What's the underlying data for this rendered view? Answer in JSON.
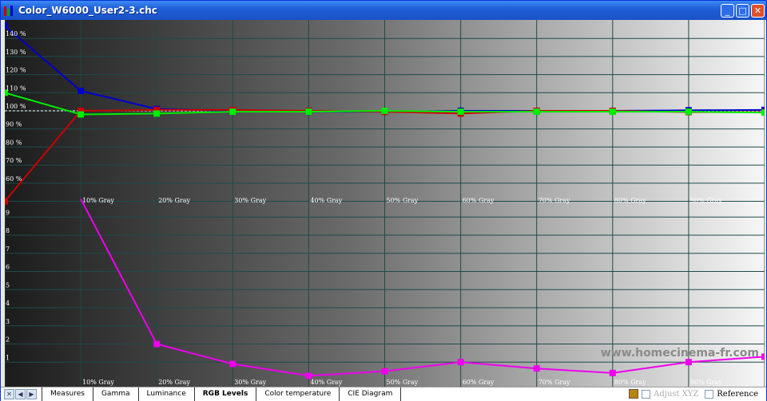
{
  "window": {
    "title": "Color_W6000_User2-3.chc",
    "controls": [
      "minimize",
      "maximize",
      "close"
    ]
  },
  "tabs": [
    {
      "label": "Measures"
    },
    {
      "label": "Gamma"
    },
    {
      "label": "Luminance"
    },
    {
      "label": "RGB Levels",
      "active": true
    },
    {
      "label": "Color temperature"
    },
    {
      "label": "CIE Diagram"
    }
  ],
  "status": {
    "adjust_xyz": "Adjust XYZ",
    "reference": "Reference"
  },
  "watermark": "www.homecinema-fr.com",
  "chart_data": [
    {
      "type": "line",
      "x": [
        0,
        10,
        20,
        30,
        40,
        50,
        60,
        70,
        80,
        90,
        100
      ],
      "x_tick_labels": [
        "10% Gray",
        "20% Gray",
        "30% Gray",
        "40% Gray",
        "50% Gray",
        "60% Gray",
        "70% Gray",
        "80% Gray",
        "90% Gray"
      ],
      "y_tick_labels": [
        "60 %",
        "70 %",
        "80 %",
        "90 %",
        "100 %",
        "110 %",
        "120 %",
        "130 %",
        "140 %"
      ],
      "ylim": [
        50,
        149
      ],
      "reference": 100,
      "grid": true,
      "series": [
        {
          "color": "#0000cc",
          "values": [
            147,
            111,
            101,
            100,
            99.5,
            99.5,
            100,
            100,
            100,
            100.3,
            100.5
          ]
        },
        {
          "color": "#cc0000",
          "values": [
            50,
            100,
            100.5,
            100.5,
            100,
            99.5,
            98.5,
            100,
            100,
            99.3,
            99.3
          ]
        },
        {
          "color": "#00ee00",
          "values": [
            110,
            98,
            98.5,
            99.5,
            99.5,
            100,
            99.5,
            99.5,
            99.5,
            99.5,
            99
          ]
        }
      ]
    },
    {
      "type": "line",
      "x": [
        10,
        20,
        30,
        40,
        50,
        60,
        70,
        80,
        90,
        100
      ],
      "x_tick_labels": [
        "10% Gray",
        "20% Gray",
        "30% Gray",
        "40% Gray",
        "50% Gray",
        "60% Gray",
        "70% Gray",
        "80% Gray",
        "90% Gray"
      ],
      "y_tick_labels": [
        "1",
        "2",
        "3",
        "4",
        "5",
        "6",
        "7",
        "8",
        "9"
      ],
      "ylim": [
        0,
        10
      ],
      "grid": true,
      "series": [
        {
          "color": "#ee00ee",
          "values": [
            10.5,
            2.0,
            0.9,
            0.25,
            0.5,
            1.0,
            0.65,
            0.4,
            1.0,
            1.3
          ]
        }
      ]
    }
  ]
}
